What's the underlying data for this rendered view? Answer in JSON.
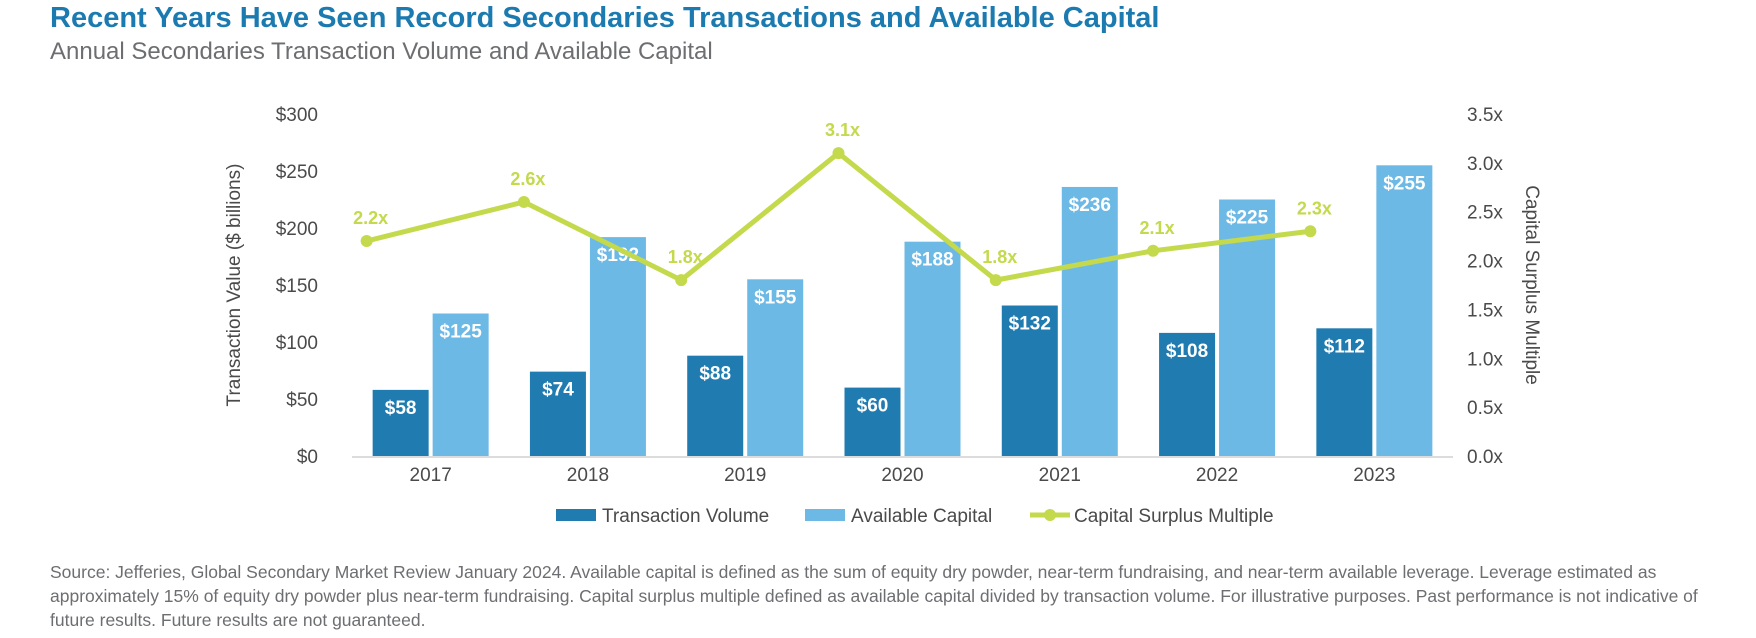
{
  "header": {
    "title": "Recent Years Have Seen Record Secondaries Transactions and Available Capital",
    "subtitle": "Annual Secondaries Transaction Volume and Available Capital"
  },
  "chart_data": {
    "type": "bar",
    "categories": [
      "2017",
      "2018",
      "2019",
      "2020",
      "2021",
      "2022",
      "2023"
    ],
    "series": [
      {
        "name": "Transaction Volume",
        "type": "bar",
        "axis": "left",
        "color": "#1f7bb0",
        "values": [
          58,
          74,
          88,
          60,
          132,
          108,
          112
        ],
        "labels": [
          "$58",
          "$74",
          "$88",
          "$60",
          "$132",
          "$108",
          "$112"
        ]
      },
      {
        "name": "Available Capital",
        "type": "bar",
        "axis": "left",
        "color": "#6cb9e6",
        "values": [
          125,
          192,
          155,
          188,
          236,
          225,
          255
        ],
        "labels": [
          "$125",
          "$192",
          "$155",
          "$188",
          "$236",
          "$225",
          "$255"
        ]
      },
      {
        "name": "Capital Surplus Multiple",
        "type": "line",
        "axis": "right",
        "color": "#c4d94b",
        "values": [
          2.2,
          2.6,
          1.8,
          3.1,
          1.8,
          2.1,
          2.3
        ],
        "labels": [
          "2.2x",
          "2.6x",
          "1.8x",
          "3.1x",
          "1.8x",
          "2.1x",
          "2.3x"
        ]
      }
    ],
    "y_left": {
      "label": "Transaction Value ($ billions)",
      "min": 0,
      "max": 300,
      "ticks": [
        "$0",
        "$50",
        "$100",
        "$150",
        "$200",
        "$250",
        "$300"
      ]
    },
    "y_right": {
      "label": "Capital Surplus Multiple",
      "min": 0,
      "max": 3.5,
      "ticks": [
        "0.0x",
        "0.5x",
        "1.0x",
        "1.5x",
        "2.0x",
        "2.5x",
        "3.0x",
        "3.5x"
      ]
    },
    "grid": false,
    "legend": "bottom-center"
  },
  "footer": {
    "source": "Source: Jefferies, Global Secondary Market Review January 2024. Available capital is defined as the sum of equity dry powder, near-term fundraising, and near-term available leverage. Leverage estimated as approximately 15% of equity dry powder plus near-term fundraising. Capital surplus multiple defined as available capital divided by transaction volume. For illustrative purposes. Past performance is not indicative of future results. Future results are not guaranteed."
  }
}
